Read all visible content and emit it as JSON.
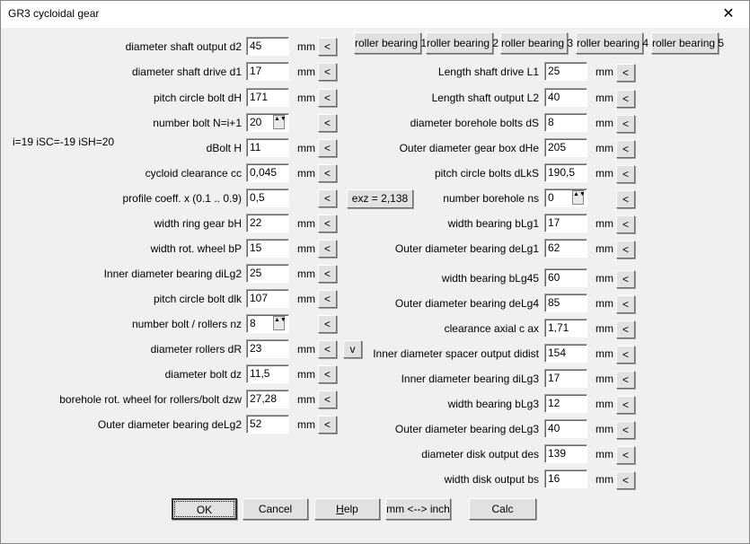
{
  "window": {
    "title": "GR3  cycloidal gear",
    "close_glyph": "✕"
  },
  "info_text": "i=19  iSC=-19  iSH=20",
  "left_fields": [
    {
      "label": "diameter shaft output d2",
      "value": "45",
      "unit": "mm"
    },
    {
      "label": "diameter shaft drive d1",
      "value": "17",
      "unit": "mm"
    },
    {
      "label": "pitch circle bolt dH",
      "value": "171",
      "unit": "mm"
    },
    {
      "label": "number bolt N=i+1",
      "value": "20",
      "unit": "",
      "spinner": true
    },
    {
      "label": "dBolt H",
      "value": "11",
      "unit": "mm"
    },
    {
      "label": "cycloid clearance cc",
      "value": "0,045",
      "unit": "mm"
    },
    {
      "label": "profile coeff. x  (0.1 .. 0.9)",
      "value": "0,5",
      "unit": ""
    },
    {
      "label": "width ring gear bH",
      "value": "22",
      "unit": "mm"
    },
    {
      "label": "width rot. wheel bP",
      "value": "15",
      "unit": "mm"
    },
    {
      "label": "Inner diameter bearing diLg2",
      "value": "25",
      "unit": "mm"
    },
    {
      "label": "pitch circle bolt dlk",
      "value": "107",
      "unit": "mm"
    },
    {
      "label": "number bolt / rollers nz",
      "value": "8",
      "unit": "",
      "spinner": true
    },
    {
      "label": "diameter rollers dR",
      "value": "23",
      "unit": "mm"
    },
    {
      "label": "diameter bolt dz",
      "value": "11,5",
      "unit": "mm"
    },
    {
      "label": "borehole rot. wheel for rollers/bolt dzw",
      "value": "27,28",
      "unit": "mm"
    },
    {
      "label": "Outer diameter bearing deLg2",
      "value": "52",
      "unit": "mm"
    }
  ],
  "right_fields": [
    {
      "label": "Length shaft drive L1",
      "value": "25",
      "unit": "mm"
    },
    {
      "label": "Length shaft output L2",
      "value": "40",
      "unit": "mm"
    },
    {
      "label": "diameter borehole bolts dS",
      "value": "8",
      "unit": "mm"
    },
    {
      "label": "Outer diameter gear box dHe",
      "value": "205",
      "unit": "mm"
    },
    {
      "label": "pitch circle bolts dLkS",
      "value": "190,5",
      "unit": "mm"
    },
    {
      "label": "number borehole ns",
      "value": "0",
      "unit": "",
      "spinner": true
    },
    {
      "label": "width bearing bLg1",
      "value": "17",
      "unit": "mm"
    },
    {
      "label": "Outer diameter bearing deLg1",
      "value": "62",
      "unit": "mm"
    },
    {
      "label": "width bearing bLg45",
      "value": "60",
      "unit": "mm"
    },
    {
      "label": "Outer diameter bearing deLg4",
      "value": "85",
      "unit": "mm"
    },
    {
      "label": "clearance axial c ax",
      "value": "1,71",
      "unit": "mm"
    },
    {
      "label": "Inner diameter spacer output didist",
      "value": "154",
      "unit": "mm"
    },
    {
      "label": "Inner diameter bearing diLg3",
      "value": "17",
      "unit": "mm"
    },
    {
      "label": "width bearing bLg3",
      "value": "12",
      "unit": "mm"
    },
    {
      "label": "Outer diameter bearing deLg3",
      "value": "40",
      "unit": "mm"
    },
    {
      "label": "diameter disk output des",
      "value": "139",
      "unit": "mm"
    },
    {
      "label": "width disk output bs",
      "value": "16",
      "unit": "mm"
    }
  ],
  "arrow_label": "<",
  "roller_buttons": [
    "roller bearing 1",
    "roller bearing 2",
    "roller bearing 3",
    "roller bearing 4",
    "roller bearing 5"
  ],
  "exz_button": "exz = 2,138",
  "v_button": "v",
  "bottom_buttons": [
    "OK",
    "Cancel",
    "Help",
    "mm <--> inch",
    "Calc"
  ]
}
